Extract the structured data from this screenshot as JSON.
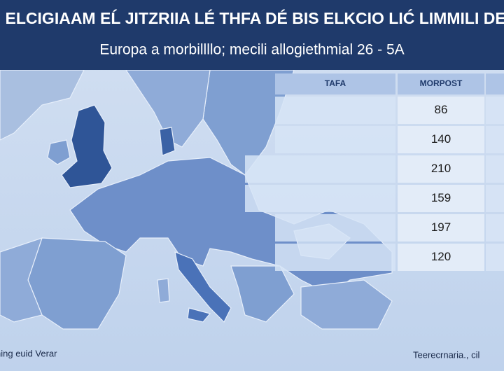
{
  "header": {
    "title": "H ELCIGIAAM EĹ JITZRIIA LÉ THFA DÉ BIS ELKCIO LIĆ LIMMILI DE I",
    "subtitle": "Europa a morbillllo; mecili allogiethmial 26 - 5A"
  },
  "table": {
    "headers": [
      "TAFA",
      "MORPOST"
    ],
    "values": [
      86,
      140,
      210,
      159,
      197,
      120
    ]
  },
  "footer": {
    "left": "hing euid Verar",
    "right": "Teerecrnaria., cil"
  }
}
